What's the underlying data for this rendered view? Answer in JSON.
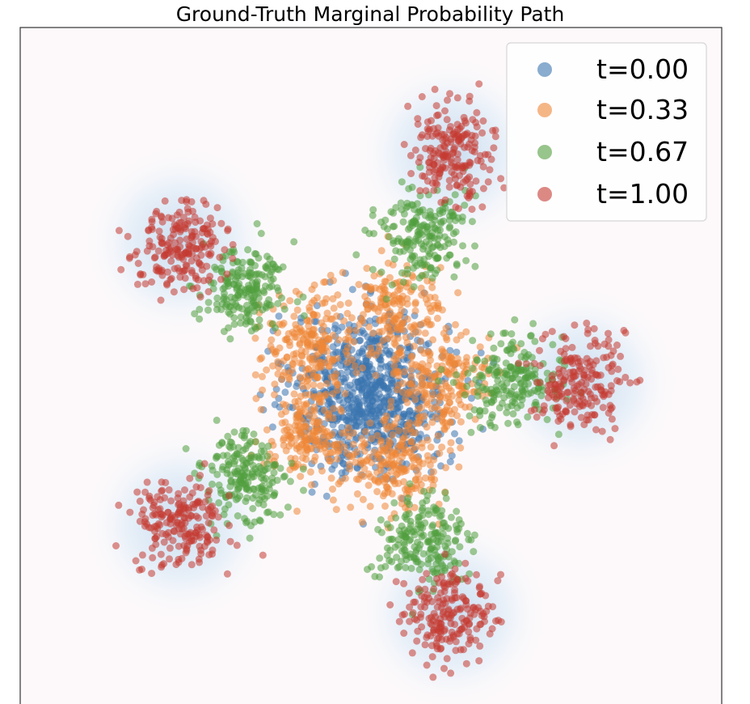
{
  "chart_data": {
    "type": "scatter",
    "title": "Ground-Truth Marginal Probability Path",
    "xlabel": "",
    "ylabel": "",
    "xlim": [
      -3.5,
      3.5
    ],
    "ylim": [
      -3.0,
      3.5
    ],
    "grid": false,
    "legend_position": "top-right",
    "background_density": {
      "colormap": "Blues",
      "centers": [
        [
          0.8,
          2.3
        ],
        [
          -1.9,
          1.45
        ],
        [
          2.1,
          0.1
        ],
        [
          -1.9,
          -1.25
        ],
        [
          0.8,
          -2.1
        ]
      ]
    },
    "series": [
      {
        "name": "t=0.00",
        "color": "#3b75af",
        "alpha": 0.55,
        "n_points": 800,
        "spread": 0.38,
        "centers": [
          [
            0,
            0
          ]
        ]
      },
      {
        "name": "t=0.33",
        "color": "#ef8636",
        "alpha": 0.55,
        "n_points": 1000,
        "spread": 0.24,
        "centers": [
          [
            0.25,
            0.75
          ],
          [
            -0.62,
            0.5
          ],
          [
            0.7,
            0.1
          ],
          [
            -0.62,
            -0.4
          ],
          [
            0.25,
            -0.7
          ]
        ]
      },
      {
        "name": "t=0.67",
        "color": "#519e3e",
        "alpha": 0.55,
        "n_points": 1000,
        "spread": 0.22,
        "centers": [
          [
            0.52,
            1.55
          ],
          [
            -1.25,
            1.0
          ],
          [
            1.4,
            0.1
          ],
          [
            -1.25,
            -0.82
          ],
          [
            0.52,
            -1.4
          ]
        ]
      },
      {
        "name": "t=1.00",
        "color": "#c53a32",
        "alpha": 0.55,
        "n_points": 1000,
        "spread": 0.22,
        "centers": [
          [
            0.8,
            2.3
          ],
          [
            -1.9,
            1.45
          ],
          [
            2.1,
            0.1
          ],
          [
            -1.9,
            -1.25
          ],
          [
            0.8,
            -2.1
          ]
        ]
      }
    ]
  }
}
